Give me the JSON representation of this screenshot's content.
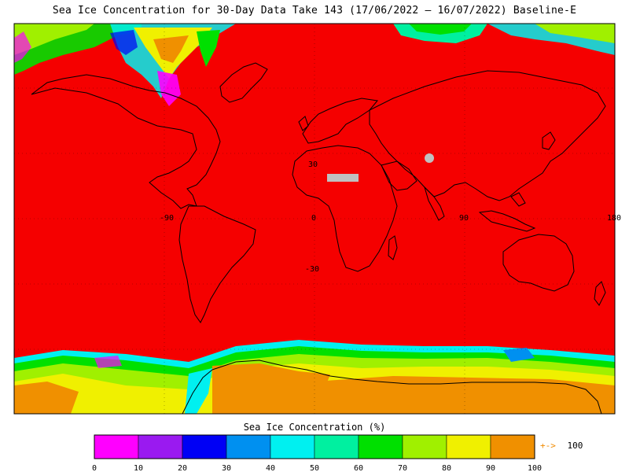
{
  "title": "Sea Ice Concentration for 30-Day Data Take 143 (17/06/2022 — 16/07/2022) Baseline-E",
  "map": {
    "ocean_color": "#f50000",
    "land_mask_color": "#c0c0c0",
    "ice_colors": [
      "#ff00ff",
      "#9a1af0",
      "#0000f5",
      "#0090f0",
      "#00f0f0",
      "#00f0a0",
      "#00e000",
      "#a0f000",
      "#f0f000",
      "#f09000"
    ],
    "grid_labels": {
      "lat_north": "30",
      "lat_south": "-30",
      "lon_west": "-90",
      "lon_zero": "0",
      "lon_east": "90",
      "lon_far": "180"
    }
  },
  "colorbar": {
    "title": "Sea Ice Concentration (%)",
    "colors": [
      "#ff00ff",
      "#9a1af0",
      "#0000f5",
      "#0090f0",
      "#00f0f0",
      "#00f0a0",
      "#00e000",
      "#a0f000",
      "#f0f000",
      "#f09000"
    ],
    "ticks": [
      "0",
      "10",
      "20",
      "30",
      "40",
      "50",
      "60",
      "70",
      "80",
      "90",
      "100"
    ],
    "overflow_arrow": "+->",
    "overflow_value": "100",
    "overflow_color": "#f08a00"
  }
}
